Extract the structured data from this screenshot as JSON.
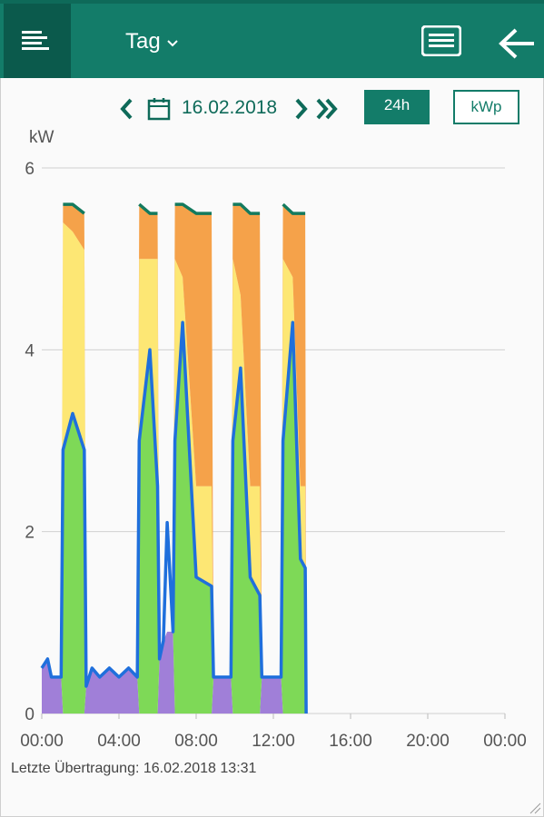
{
  "header": {
    "title": "Tag"
  },
  "toolbar": {
    "date": "16.02.2018",
    "range_button": "24h",
    "unit_button": "kWp"
  },
  "chart_data": {
    "type": "stacked-area",
    "y_label": "kW",
    "xlim": [
      0,
      24
    ],
    "xticks": [
      {
        "value": 0,
        "label": "00:00"
      },
      {
        "value": 4,
        "label": "04:00"
      },
      {
        "value": 8,
        "label": "08:00"
      },
      {
        "value": 12,
        "label": "12:00"
      },
      {
        "value": 16,
        "label": "16:00"
      },
      {
        "value": 20,
        "label": "20:00"
      },
      {
        "value": 24,
        "label": "00:00"
      }
    ],
    "ylim": [
      0,
      6
    ],
    "yticks": [
      0,
      2,
      4,
      6
    ],
    "grid": true,
    "x": [
      0,
      0.3,
      0.5,
      1.0,
      1.1,
      1.6,
      2.2,
      2.3,
      2.6,
      3.0,
      3.5,
      4.0,
      4.5,
      4.95,
      5.05,
      5.6,
      6.0,
      6.1,
      6.3,
      6.5,
      6.8,
      6.9,
      7.3,
      8.0,
      8.8,
      8.9,
      9.3,
      9.8,
      9.9,
      10.3,
      10.8,
      11.3,
      11.4,
      11.8,
      12.4,
      12.5,
      13.0,
      13.4,
      13.65,
      13.7
    ],
    "series": [
      {
        "kind": "area",
        "color": "#a07fd8",
        "values": [
          0.5,
          0.6,
          0.4,
          0.4,
          0,
          0,
          0,
          0.3,
          0.5,
          0.4,
          0.5,
          0.4,
          0.5,
          0.4,
          0,
          0,
          0,
          0.6,
          0.8,
          0.9,
          0.9,
          0,
          0,
          0,
          0,
          0.4,
          0.4,
          0.4,
          0,
          0,
          0,
          0,
          0.4,
          0.4,
          0.4,
          0,
          0,
          0,
          0,
          0
        ]
      },
      {
        "kind": "area",
        "color": "#7ed957",
        "values": [
          0,
          0,
          0,
          0,
          2.9,
          3.3,
          2.9,
          0,
          0,
          0,
          0,
          0,
          0,
          0,
          3.0,
          4.0,
          2.5,
          0,
          0,
          0,
          0,
          3.0,
          4.3,
          1.5,
          1.4,
          0,
          0,
          0,
          3.0,
          3.8,
          1.5,
          1.3,
          0,
          0,
          0,
          3.0,
          4.3,
          1.7,
          1.6,
          0
        ]
      },
      {
        "kind": "area",
        "color": "#fde774",
        "values": [
          0,
          0,
          0,
          0,
          2.5,
          2.0,
          2.2,
          0,
          0,
          0,
          0,
          0,
          0,
          0,
          2.0,
          1.0,
          2.5,
          0,
          0,
          0,
          0,
          2.0,
          0.5,
          1.0,
          1.1,
          0,
          0,
          0,
          2.0,
          0.8,
          1.0,
          1.2,
          0,
          0,
          0,
          2.0,
          0.5,
          0.8,
          0.9,
          0
        ]
      },
      {
        "kind": "area",
        "color": "#f5a24a",
        "values": [
          0,
          0,
          0,
          0,
          0.2,
          0.3,
          0.4,
          0,
          0,
          0,
          0,
          0,
          0,
          0,
          0.6,
          0.5,
          0.5,
          0,
          0,
          0,
          0,
          0.6,
          0.8,
          3.0,
          3.0,
          0,
          0,
          0,
          0.6,
          1.0,
          3.0,
          3.0,
          0,
          0,
          0,
          0.6,
          0.7,
          3.0,
          3.0,
          0
        ]
      },
      {
        "kind": "line",
        "color": "#137a5e",
        "values": [
          null,
          null,
          null,
          null,
          5.6,
          5.6,
          5.5,
          null,
          null,
          null,
          null,
          null,
          null,
          null,
          5.6,
          5.5,
          5.5,
          null,
          null,
          null,
          null,
          5.6,
          5.6,
          5.5,
          5.5,
          null,
          null,
          null,
          5.6,
          5.6,
          5.5,
          5.5,
          null,
          null,
          null,
          5.6,
          5.5,
          5.5,
          5.5,
          null
        ]
      },
      {
        "kind": "line",
        "color": "#1f6fdc",
        "values": [
          0.5,
          0.6,
          0.4,
          0.4,
          2.9,
          3.3,
          2.9,
          0.3,
          0.5,
          0.4,
          0.5,
          0.4,
          0.5,
          0.4,
          3.0,
          4.0,
          2.5,
          0.6,
          0.8,
          2.1,
          0.9,
          3.0,
          4.3,
          1.5,
          1.4,
          0.4,
          0.4,
          0.4,
          3.0,
          3.8,
          1.5,
          1.3,
          0.4,
          0.4,
          0.4,
          3.0,
          4.3,
          1.7,
          1.6,
          0
        ]
      }
    ]
  },
  "footer": {
    "status": "Letzte Übertragung: 16.02.2018 13:31"
  }
}
